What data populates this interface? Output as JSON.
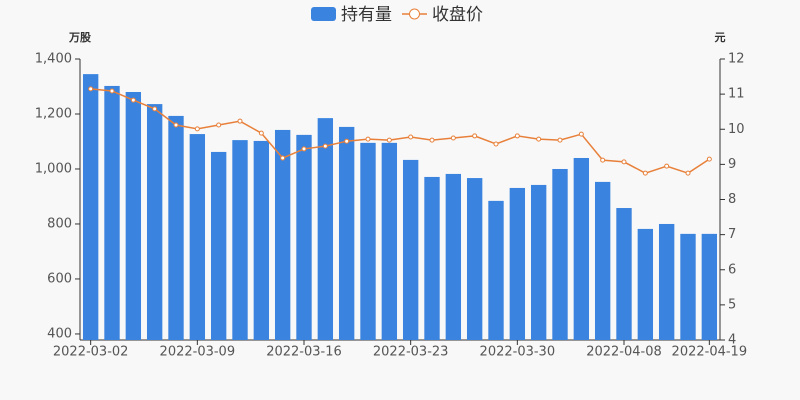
{
  "chart_data": {
    "type": "bar-line",
    "categories": [
      "2022-03-02",
      null,
      null,
      null,
      null,
      "2022-03-09",
      null,
      null,
      null,
      null,
      "2022-03-16",
      null,
      null,
      null,
      null,
      "2022-03-23",
      null,
      null,
      null,
      null,
      "2022-03-30",
      null,
      null,
      null,
      null,
      "2022-04-08",
      null,
      null,
      null,
      "2022-04-19"
    ],
    "ylabel": "万股",
    "y2label": "元",
    "ylim": [
      378,
      1400
    ],
    "yticks": [
      400,
      600,
      800,
      {
        "value": 1000,
        "label": "1,000"
      },
      {
        "value": 1200,
        "label": "1,200"
      },
      {
        "value": 1400,
        "label": "1,400"
      }
    ],
    "y2lim": [
      4,
      12
    ],
    "y2ticks": [
      4,
      5,
      6,
      7,
      8,
      9,
      10,
      11,
      12
    ],
    "legend": "top",
    "series": [
      {
        "name": "持有量",
        "type": "bar",
        "color": "#3a84e0",
        "values": [
          1345,
          1302,
          1280,
          1236,
          1193,
          1127,
          1062,
          1105,
          1102,
          1142,
          1124,
          1185,
          1153,
          1095,
          1095,
          1033,
          971,
          982,
          967,
          884,
          931,
          942,
          1000,
          1040,
          953,
          858,
          782,
          800,
          764,
          764
        ]
      },
      {
        "name": "收盘价",
        "type": "line",
        "axis": "y2",
        "color": "#e8803a",
        "values": [
          11.15,
          11.09,
          10.83,
          10.58,
          10.12,
          10.01,
          10.12,
          10.23,
          9.89,
          9.18,
          9.44,
          9.52,
          9.66,
          9.72,
          9.69,
          9.78,
          9.69,
          9.75,
          9.81,
          9.58,
          9.81,
          9.72,
          9.69,
          9.86,
          9.12,
          9.07,
          8.75,
          8.95,
          8.75,
          9.15
        ]
      }
    ]
  }
}
